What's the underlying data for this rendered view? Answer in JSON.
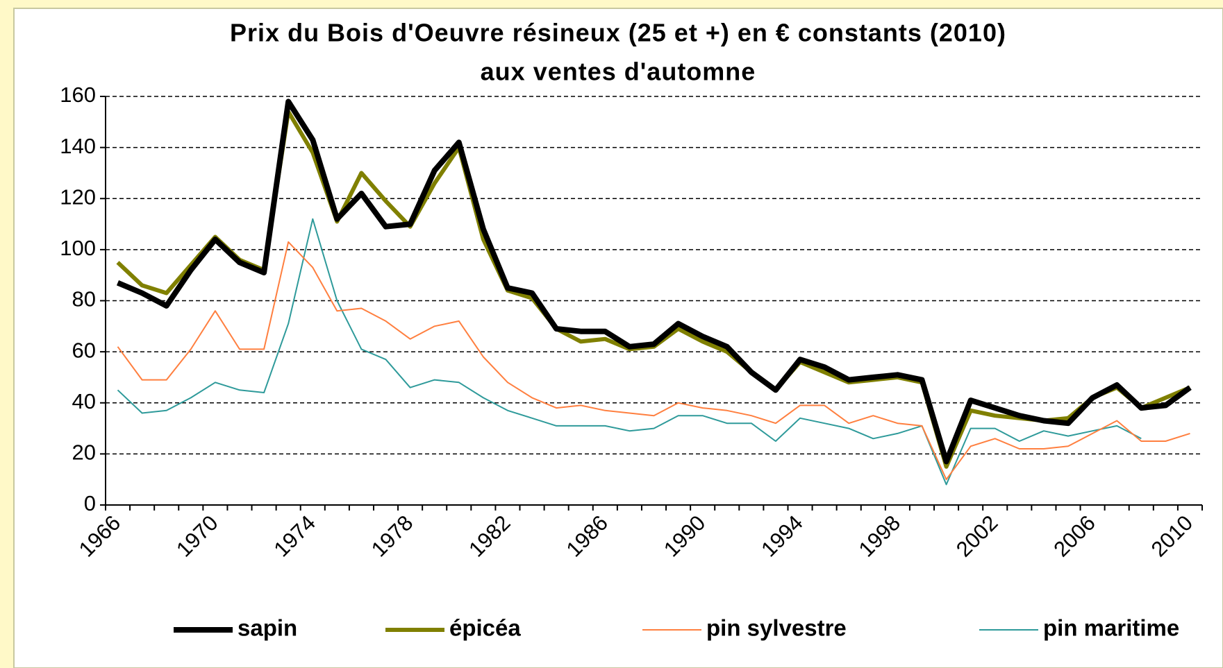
{
  "chart_data": {
    "type": "line",
    "title": "Prix du Bois d'Oeuvre résineux (25 et +) en € constants (2010)",
    "subtitle": "aux ventes d'automne",
    "categories": [
      "1966",
      null,
      null,
      null,
      "1970",
      null,
      null,
      null,
      "1974",
      null,
      null,
      null,
      "1978",
      null,
      null,
      null,
      "1982",
      null,
      null,
      null,
      "1986",
      null,
      null,
      null,
      "1990",
      null,
      null,
      null,
      "1994",
      null,
      null,
      null,
      "1998",
      null,
      null,
      null,
      "2002",
      null,
      null,
      null,
      "2006",
      null,
      null,
      null,
      "2010"
    ],
    "series": [
      {
        "name": "sapin",
        "color": "#000000",
        "values": [
          87,
          83,
          78,
          92,
          104,
          95,
          91,
          158,
          143,
          112,
          122,
          109,
          110,
          131,
          142,
          108,
          85,
          83,
          69,
          68,
          68,
          62,
          63,
          71,
          66,
          62,
          52,
          45,
          57,
          54,
          49,
          50,
          51,
          49,
          17,
          41,
          38,
          35,
          33,
          32,
          42,
          47,
          38,
          39,
          46
        ]
      },
      {
        "name": "épicéa",
        "color": "#808000",
        "values": [
          95,
          86,
          83,
          94,
          105,
          96,
          92,
          154,
          138,
          111,
          130,
          119,
          109,
          126,
          140,
          104,
          84,
          81,
          69,
          64,
          65,
          61,
          62,
          69,
          64,
          60,
          52,
          45,
          56,
          52,
          48,
          49,
          50,
          48,
          15,
          37,
          35,
          34,
          33,
          34,
          42,
          46,
          38,
          42,
          46
        ]
      },
      {
        "name": "pin sylvestre",
        "color": "#ff7f3f",
        "values": [
          62,
          49,
          49,
          61,
          76,
          61,
          61,
          103,
          93,
          76,
          77,
          72,
          65,
          70,
          72,
          58,
          48,
          42,
          38,
          39,
          37,
          36,
          35,
          40,
          38,
          37,
          35,
          32,
          39,
          39,
          32,
          35,
          32,
          31,
          10,
          23,
          26,
          22,
          22,
          23,
          28,
          33,
          25,
          25,
          28
        ]
      },
      {
        "name": "pin maritime",
        "color": "#2e9a9a",
        "values": [
          45,
          36,
          37,
          42,
          48,
          45,
          44,
          71,
          112,
          80,
          61,
          57,
          46,
          49,
          48,
          42,
          37,
          34,
          31,
          31,
          31,
          29,
          30,
          35,
          35,
          32,
          32,
          25,
          34,
          32,
          30,
          26,
          28,
          31,
          8,
          30,
          30,
          25,
          29,
          27,
          29,
          31,
          26,
          null,
          null
        ]
      }
    ],
    "ylim": [
      0,
      160
    ],
    "yticks": [
      0,
      20,
      40,
      60,
      80,
      100,
      120,
      140,
      160
    ],
    "grid": true,
    "legend": "bottom"
  }
}
